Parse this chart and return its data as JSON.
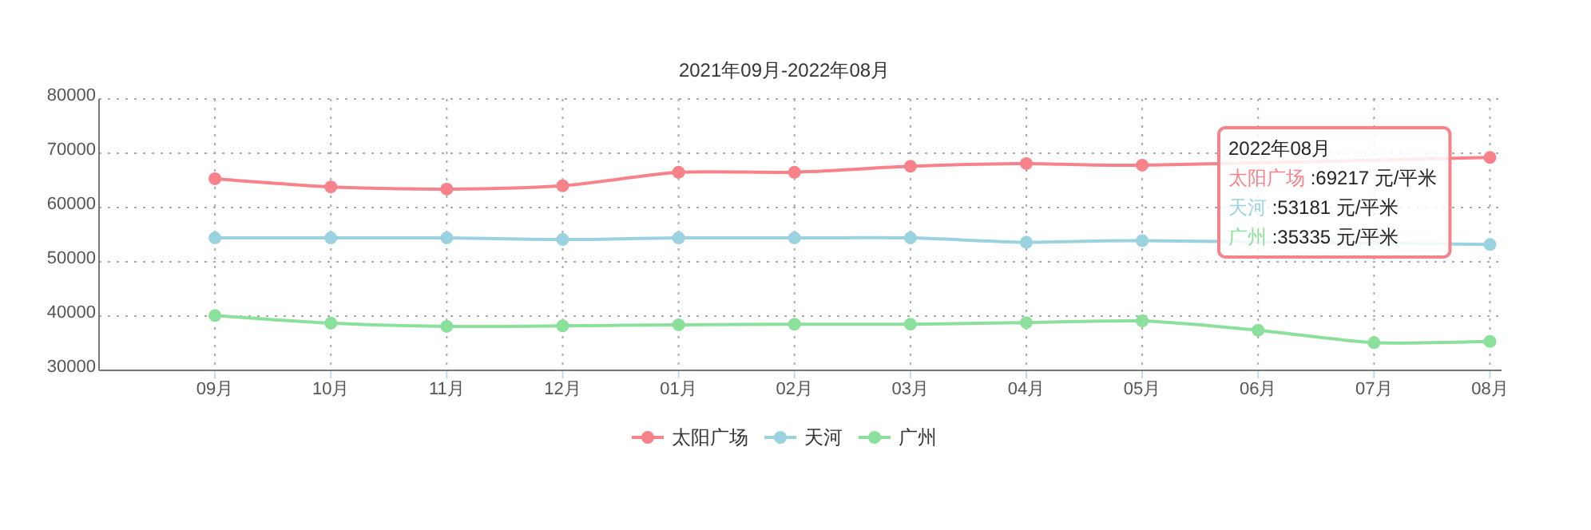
{
  "chart_data": {
    "type": "line",
    "title": "2021年09月-2022年08月",
    "categories": [
      "09月",
      "10月",
      "11月",
      "12月",
      "01月",
      "02月",
      "03月",
      "04月",
      "05月",
      "06月",
      "07月",
      "08月"
    ],
    "series": [
      {
        "name": "太阳广场",
        "color": "#f7828a",
        "values": [
          65300,
          63800,
          63400,
          64000,
          66500,
          66500,
          67600,
          68100,
          67800,
          null,
          null,
          69217
        ]
      },
      {
        "name": "天河",
        "color": "#9bd2df",
        "values": [
          54400,
          54400,
          54400,
          54100,
          54400,
          54400,
          54400,
          53600,
          53900,
          null,
          null,
          53181
        ]
      },
      {
        "name": "广州",
        "color": "#8be09b",
        "values": [
          40100,
          38700,
          38100,
          38200,
          38400,
          38500,
          38500,
          38800,
          39100,
          37400,
          35100,
          35335
        ]
      }
    ],
    "ylim": [
      30000,
      80000
    ],
    "yticks": [
      30000,
      40000,
      50000,
      60000,
      70000,
      80000
    ],
    "grid": true,
    "legend": "bottom",
    "marker": "circle",
    "line_style": "solid",
    "annotations": [
      "2022年08月",
      "太阳广场 :69217 元/平米",
      "天河 :53181 元/平米",
      "广州 :35335 元/平米"
    ]
  }
}
